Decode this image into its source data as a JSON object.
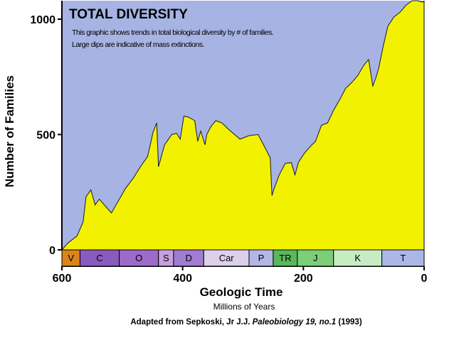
{
  "chart_data": {
    "type": "area",
    "title": "TOTAL DIVERSITY",
    "subtitle_lines": [
      "This graphic shows trends in total biological diversity by # of families.",
      "Large dips are indicative of mass extinctions."
    ],
    "xlabel": "Geologic Time",
    "xlabel_sub": "Millions of Years",
    "ylabel": "Number of Families",
    "xlim": [
      600,
      0
    ],
    "ylim": [
      0,
      1080
    ],
    "x_ticks": [
      600,
      400,
      200,
      0
    ],
    "y_ticks": [
      0,
      500,
      1000
    ],
    "series": [
      {
        "name": "Total diversity (families)",
        "x": [
          600,
          590,
          575,
          565,
          560,
          552,
          545,
          538,
          530,
          518,
          508,
          495,
          482,
          470,
          458,
          449,
          443,
          440,
          430,
          418,
          410,
          404,
          398,
          390,
          380,
          375,
          370,
          363,
          360,
          353,
          345,
          335,
          323,
          305,
          290,
          275,
          255,
          252,
          249,
          240,
          230,
          220,
          214,
          208,
          198,
          186,
          180,
          170,
          160,
          150,
          140,
          130,
          120,
          110,
          100,
          92,
          85,
          80,
          75,
          68,
          60,
          50,
          40,
          30,
          20,
          10,
          5,
          0
        ],
        "y": [
          0,
          30,
          60,
          120,
          230,
          260,
          195,
          220,
          195,
          160,
          205,
          265,
          310,
          360,
          405,
          510,
          550,
          360,
          455,
          500,
          505,
          480,
          580,
          575,
          560,
          470,
          515,
          455,
          500,
          535,
          560,
          550,
          520,
          480,
          495,
          500,
          400,
          235,
          262,
          325,
          375,
          378,
          325,
          380,
          420,
          455,
          470,
          540,
          550,
          605,
          650,
          700,
          725,
          755,
          800,
          825,
          710,
          745,
          790,
          880,
          970,
          1010,
          1030,
          1060,
          1080,
          1080,
          1075,
          1075
        ]
      }
    ],
    "periods": [
      {
        "label": "V",
        "start": 600,
        "end": 570,
        "color": "#d9851c"
      },
      {
        "label": "C",
        "start": 570,
        "end": 505,
        "color": "#8a5bbf"
      },
      {
        "label": "O",
        "start": 505,
        "end": 440,
        "color": "#9d6ac9"
      },
      {
        "label": "S",
        "start": 440,
        "end": 415,
        "color": "#c5a2dd"
      },
      {
        "label": "D",
        "start": 415,
        "end": 365,
        "color": "#a27cd0"
      },
      {
        "label": "Car",
        "start": 365,
        "end": 290,
        "color": "#ddd0ea"
      },
      {
        "label": "P",
        "start": 290,
        "end": 250,
        "color": "#b4b6e6"
      },
      {
        "label": "TR",
        "start": 250,
        "end": 210,
        "color": "#58b85a"
      },
      {
        "label": "J",
        "start": 210,
        "end": 150,
        "color": "#7ccf78"
      },
      {
        "label": "K",
        "start": 150,
        "end": 70,
        "color": "#c7ecc2"
      },
      {
        "label": "T",
        "start": 70,
        "end": 0,
        "color": "#acb7e9"
      }
    ],
    "grid": false,
    "legend": "none"
  },
  "credit": {
    "prefix": "Adapted from Sepkoski, Jr J.J. ",
    "journal": "Paleobiology 19, no.1",
    "suffix": " (1993)"
  },
  "colors": {
    "background": "#a6b3e3",
    "fill": "#f2f200",
    "text": "#000000"
  }
}
